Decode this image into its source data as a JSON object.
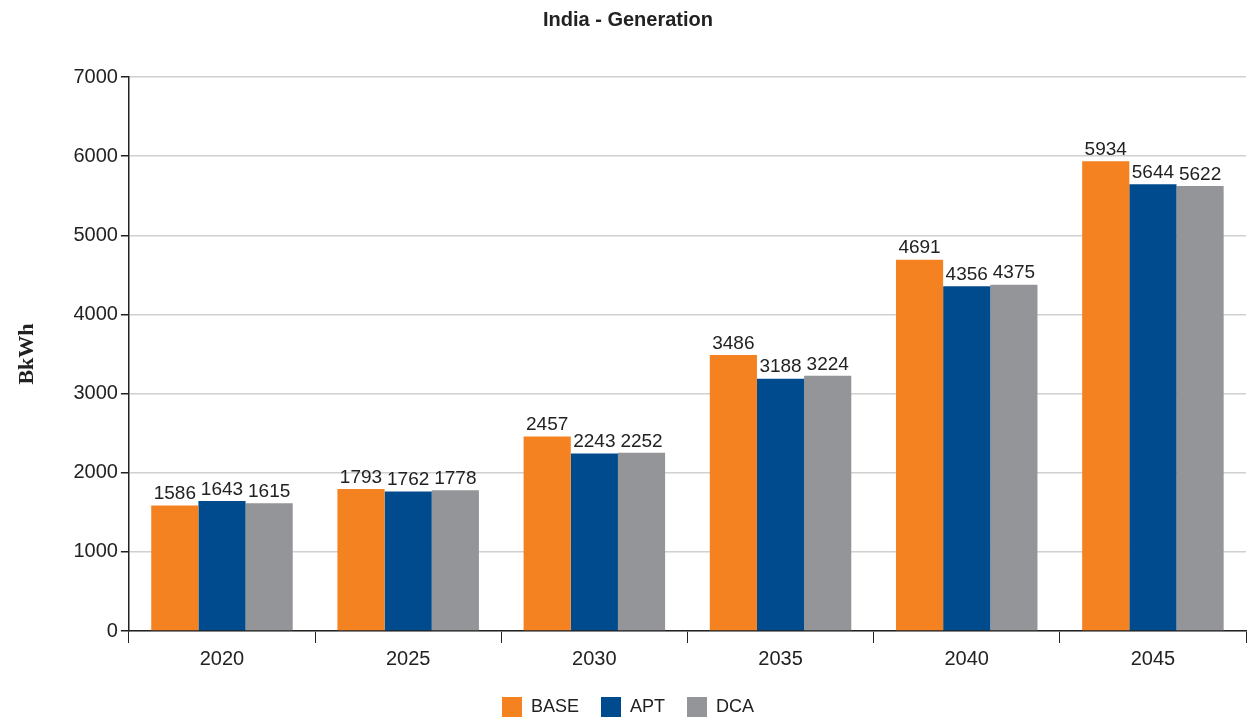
{
  "chart_data": {
    "type": "bar",
    "title": "India - Generation",
    "ylabel": "BkWh",
    "categories": [
      "2020",
      "2025",
      "2030",
      "2035",
      "2040",
      "2045"
    ],
    "series": [
      {
        "name": "BASE",
        "color": "#f58220",
        "values": [
          1586,
          1793,
          2457,
          3486,
          4691,
          5934
        ]
      },
      {
        "name": "APT",
        "color": "#004b8d",
        "values": [
          1643,
          1762,
          2243,
          3188,
          4356,
          5644
        ]
      },
      {
        "name": "DCA",
        "color": "#939598",
        "values": [
          1615,
          1778,
          2252,
          3224,
          4375,
          5622
        ]
      }
    ],
    "ylim": [
      0,
      7000
    ],
    "yticks": [
      0,
      1000,
      2000,
      3000,
      4000,
      5000,
      6000,
      7000
    ],
    "grid": "y",
    "legend": "bottom",
    "data_labels": true
  }
}
